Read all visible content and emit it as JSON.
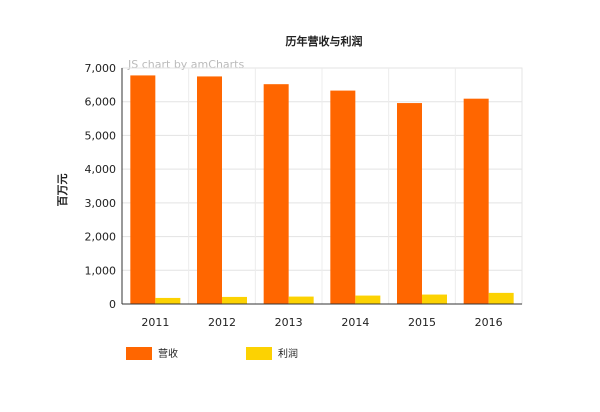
{
  "chart_data": {
    "type": "bar",
    "title": "历年营收与利润",
    "watermark": "JS chart by amCharts",
    "ylabel": "百万元",
    "xlabel": "",
    "categories": [
      "2011",
      "2012",
      "2013",
      "2014",
      "2015",
      "2016"
    ],
    "ylim": [
      0,
      7000
    ],
    "yticks": [
      0,
      1000,
      2000,
      3000,
      4000,
      5000,
      6000,
      7000
    ],
    "ytick_labels": [
      "0",
      "1,000",
      "2,000",
      "3,000",
      "4,000",
      "5,000",
      "6,000",
      "7,000"
    ],
    "grid": true,
    "legend_position": "bottom-left",
    "series": [
      {
        "name": "营收",
        "color": "#ff6600",
        "values": [
          6780,
          6750,
          6520,
          6330,
          5960,
          6090
        ]
      },
      {
        "name": "利润",
        "color": "#fcd202",
        "values": [
          180,
          210,
          220,
          250,
          280,
          330
        ]
      }
    ]
  }
}
